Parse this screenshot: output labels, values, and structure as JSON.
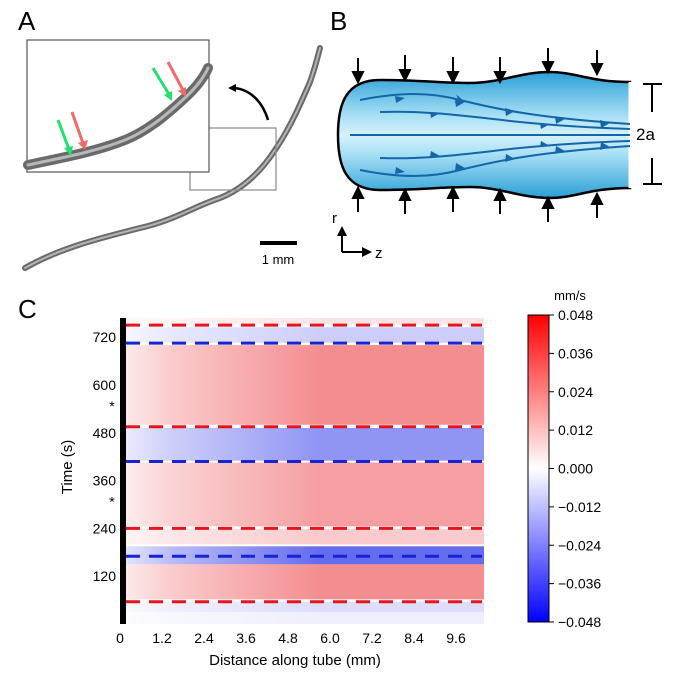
{
  "panels": {
    "a": "A",
    "b": "B",
    "c": "C"
  },
  "panel_a": {
    "scale_bar": "1 mm"
  },
  "panel_b": {
    "width_label": "2a",
    "axis_r": "r",
    "axis_z": "z"
  },
  "panel_c": {
    "ylabel": "Time (s)",
    "xlabel": "Distance along tube (mm)",
    "colorbar_unit": "mm/s",
    "asterisk": "*",
    "colors": {
      "red_line": "#e8141b",
      "blue_line": "#1524d6",
      "pos": "#e8141b",
      "neg": "#1a23e6"
    }
  },
  "chart_data": {
    "type": "heatmap",
    "xlabel": "Distance along tube (mm)",
    "ylabel": "Time (s)",
    "x_ticks": [
      "0",
      "1.2",
      "2.4",
      "3.6",
      "4.8",
      "6.0",
      "7.2",
      "8.4",
      "9.6"
    ],
    "x_tick_values": [
      0,
      1.2,
      2.4,
      3.6,
      4.8,
      6.0,
      7.2,
      8.4,
      9.6
    ],
    "y_ticks": [
      "120",
      "240",
      "360",
      "480",
      "600",
      "720"
    ],
    "y_tick_values": [
      120,
      240,
      360,
      480,
      600,
      720
    ],
    "xlim": [
      0,
      10.4
    ],
    "ylim": [
      0,
      768
    ],
    "colorbar": {
      "unit": "mm/s",
      "ticks": [
        "0.048",
        "0.036",
        "0.024",
        "0.012",
        "0.000",
        "−0.012",
        "−0.024",
        "−0.036",
        "−0.048"
      ],
      "tick_values": [
        0.048,
        0.036,
        0.024,
        0.012,
        0.0,
        -0.012,
        -0.024,
        -0.036,
        -0.048
      ],
      "range": [
        -0.048,
        0.048
      ]
    },
    "red_dashed_times": [
      56,
      240,
      495,
      750
    ],
    "blue_dashed_times": [
      170,
      408,
      705
    ],
    "asterisk_times": [
      310,
      550
    ],
    "bands": [
      {
        "t0": 0,
        "t1": 30,
        "value": -0.004
      },
      {
        "t0": 30,
        "t1": 56,
        "value": -0.008
      },
      {
        "t0": 62,
        "t1": 150,
        "value": 0.026
      },
      {
        "t0": 150,
        "t1": 195,
        "value": -0.036
      },
      {
        "t0": 200,
        "t1": 238,
        "value": 0.012
      },
      {
        "t0": 245,
        "t1": 405,
        "value": 0.022
      },
      {
        "t0": 410,
        "t1": 492,
        "value": -0.026
      },
      {
        "t0": 500,
        "t1": 700,
        "value": 0.026
      },
      {
        "t0": 706,
        "t1": 745,
        "value": -0.012
      },
      {
        "t0": 752,
        "t1": 768,
        "value": 0.006
      }
    ]
  }
}
